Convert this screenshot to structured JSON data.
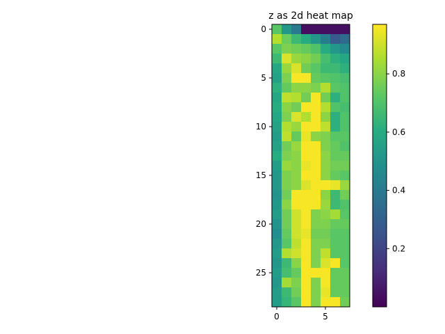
{
  "chart_data": {
    "type": "heatmap",
    "title": "z as 2d heat map",
    "xlabel": "",
    "ylabel": "",
    "rows": 29,
    "cols": 8,
    "colormap": "viridis",
    "x_ticks": [
      0,
      5
    ],
    "y_ticks": [
      0,
      5,
      10,
      15,
      20,
      25
    ],
    "colorbar": {
      "range": [
        0.0,
        0.97
      ],
      "ticks": [
        0.2,
        0.4,
        0.6,
        0.8
      ],
      "tick_labels": [
        "0.2",
        "0.4",
        "0.6",
        "0.8"
      ]
    },
    "grid": false,
    "values": [
      [
        0.72,
        0.52,
        0.4,
        0.04,
        0.04,
        0.04,
        0.04,
        0.04
      ],
      [
        0.86,
        0.75,
        0.66,
        0.6,
        0.52,
        0.42,
        0.28,
        0.34
      ],
      [
        0.72,
        0.78,
        0.76,
        0.74,
        0.7,
        0.6,
        0.52,
        0.46
      ],
      [
        0.66,
        0.92,
        0.82,
        0.8,
        0.76,
        0.68,
        0.62,
        0.58
      ],
      [
        0.58,
        0.82,
        0.92,
        0.76,
        0.72,
        0.66,
        0.66,
        0.62
      ],
      [
        0.56,
        0.78,
        0.96,
        0.96,
        0.74,
        0.72,
        0.7,
        0.68
      ],
      [
        0.62,
        0.74,
        0.8,
        0.8,
        0.78,
        0.86,
        0.72,
        0.7
      ],
      [
        0.58,
        0.88,
        0.86,
        0.76,
        0.96,
        0.76,
        0.62,
        0.7
      ],
      [
        0.6,
        0.8,
        0.76,
        0.96,
        0.96,
        0.86,
        0.7,
        0.68
      ],
      [
        0.58,
        0.78,
        0.92,
        0.86,
        0.96,
        0.8,
        0.62,
        0.7
      ],
      [
        0.56,
        0.86,
        0.82,
        0.96,
        0.96,
        0.88,
        0.62,
        0.7
      ],
      [
        0.54,
        0.88,
        0.74,
        0.94,
        0.8,
        0.78,
        0.72,
        0.72
      ],
      [
        0.56,
        0.76,
        0.82,
        0.96,
        0.96,
        0.78,
        0.74,
        0.7
      ],
      [
        0.6,
        0.78,
        0.8,
        0.96,
        0.96,
        0.8,
        0.74,
        0.74
      ],
      [
        0.54,
        0.82,
        0.8,
        0.94,
        0.96,
        0.8,
        0.76,
        0.76
      ],
      [
        0.52,
        0.78,
        0.8,
        0.96,
        0.96,
        0.8,
        0.74,
        0.72
      ],
      [
        0.52,
        0.78,
        0.8,
        0.92,
        0.96,
        0.96,
        0.94,
        0.82
      ],
      [
        0.5,
        0.76,
        0.96,
        0.96,
        0.96,
        0.8,
        0.66,
        0.76
      ],
      [
        0.52,
        0.8,
        0.96,
        0.96,
        0.96,
        0.82,
        0.66,
        0.7
      ],
      [
        0.54,
        0.76,
        0.9,
        0.96,
        0.78,
        0.8,
        0.84,
        0.72
      ],
      [
        0.5,
        0.76,
        0.9,
        0.96,
        0.78,
        0.78,
        0.74,
        0.74
      ],
      [
        0.48,
        0.74,
        0.9,
        0.94,
        0.76,
        0.76,
        0.72,
        0.72
      ],
      [
        0.52,
        0.72,
        0.88,
        0.96,
        0.78,
        0.78,
        0.72,
        0.72
      ],
      [
        0.54,
        0.86,
        0.9,
        0.96,
        0.78,
        0.88,
        0.72,
        0.72
      ],
      [
        0.52,
        0.66,
        0.8,
        0.96,
        0.78,
        0.92,
        0.96,
        0.72
      ],
      [
        0.54,
        0.68,
        0.74,
        0.96,
        0.96,
        0.96,
        0.74,
        0.74
      ],
      [
        0.52,
        0.84,
        0.78,
        0.96,
        0.78,
        0.96,
        0.74,
        0.74
      ],
      [
        0.54,
        0.66,
        0.76,
        0.96,
        0.78,
        0.94,
        0.74,
        0.74
      ],
      [
        0.54,
        0.64,
        0.72,
        0.96,
        0.78,
        0.96,
        0.96,
        0.76
      ]
    ]
  }
}
